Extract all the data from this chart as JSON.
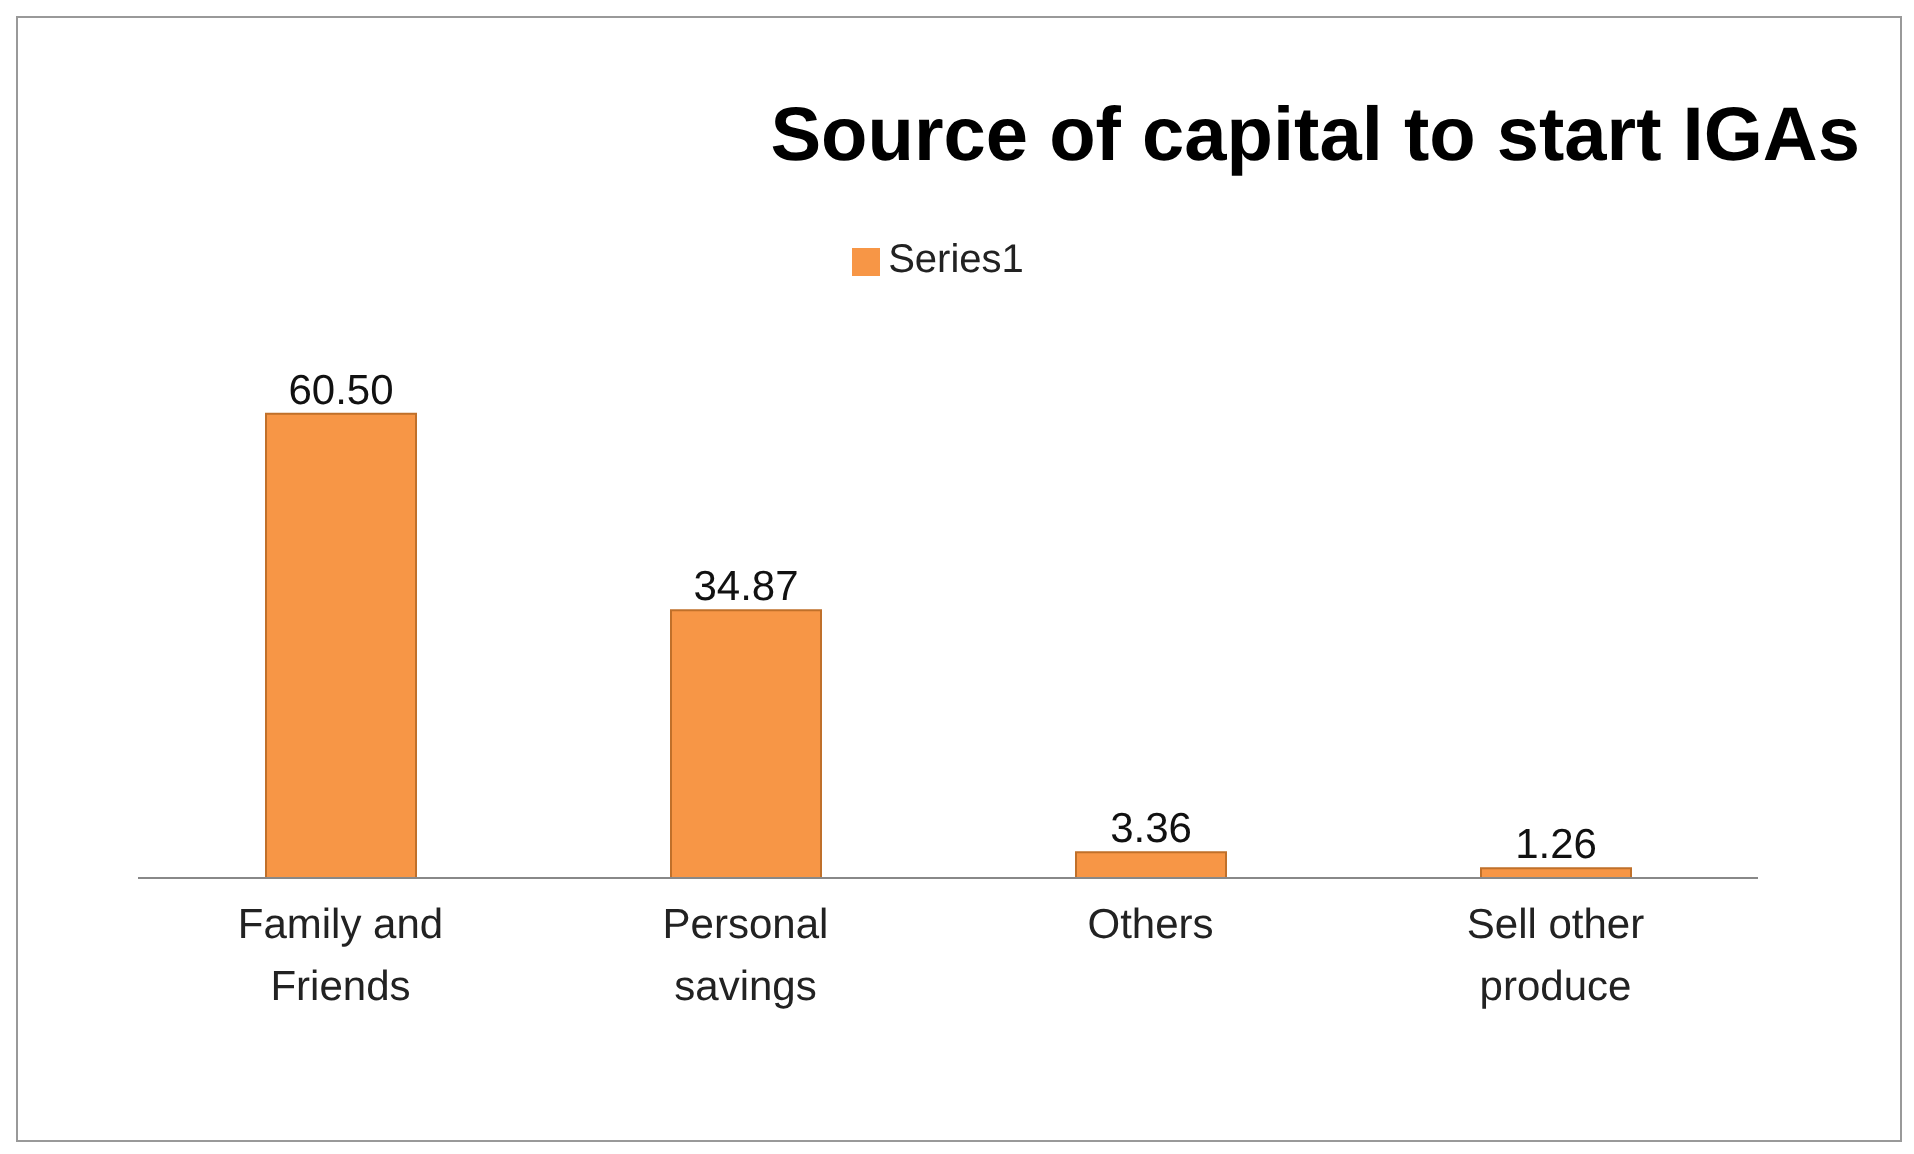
{
  "chart_data": {
    "type": "bar",
    "title": "Source of capital to start IGAs",
    "categories": [
      "Family and Friends",
      "Personal savings",
      "Others",
      "Sell other produce"
    ],
    "series": [
      {
        "name": "Series1",
        "color": "#f79646",
        "values": [
          60.5,
          34.87,
          3.36,
          1.26
        ],
        "value_labels": [
          "60.50",
          "34.87",
          "3.36",
          "1.26"
        ]
      }
    ],
    "legend": "top"
  }
}
